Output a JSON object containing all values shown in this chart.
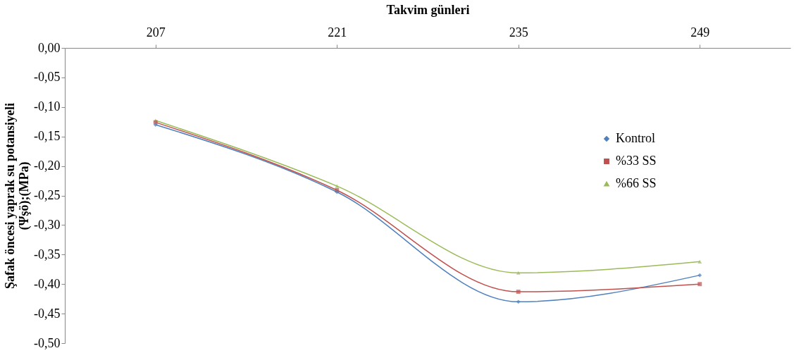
{
  "chart_data": {
    "type": "line",
    "xlabel": "Takvim günleri",
    "ylabel": "Şafak öncesi yaprak su potansiyeli (Ψşö);(MPa)",
    "categories": [
      "207",
      "221",
      "235",
      "249"
    ],
    "series": [
      {
        "name": "Kontrol",
        "color": "#4f81bd",
        "marker": "diamond",
        "values": [
          -0.13,
          -0.244,
          -0.43,
          -0.385
        ]
      },
      {
        "name": "%33 SS",
        "color": "#c0504d",
        "marker": "square",
        "values": [
          -0.126,
          -0.241,
          -0.413,
          -0.4
        ]
      },
      {
        "name": "%66 SS",
        "color": "#9bbb59",
        "marker": "triangle",
        "values": [
          -0.123,
          -0.234,
          -0.381,
          -0.362
        ]
      }
    ],
    "ylim": [
      -0.5,
      0
    ],
    "yticks": [
      {
        "value": 0,
        "label": "0,00"
      },
      {
        "value": -0.05,
        "label": "-0,05"
      },
      {
        "value": -0.1,
        "label": "-0,10"
      },
      {
        "value": -0.15,
        "label": "-0,15"
      },
      {
        "value": -0.2,
        "label": "-0,20"
      },
      {
        "value": -0.25,
        "label": "-0,25"
      },
      {
        "value": -0.3,
        "label": "-0,30"
      },
      {
        "value": -0.35,
        "label": "-0,35"
      },
      {
        "value": -0.4,
        "label": "-0,40"
      },
      {
        "value": -0.45,
        "label": "-0,45"
      },
      {
        "value": -0.5,
        "label": "-0,50"
      }
    ],
    "grid": false,
    "legend": "right",
    "line_style": "solid"
  }
}
